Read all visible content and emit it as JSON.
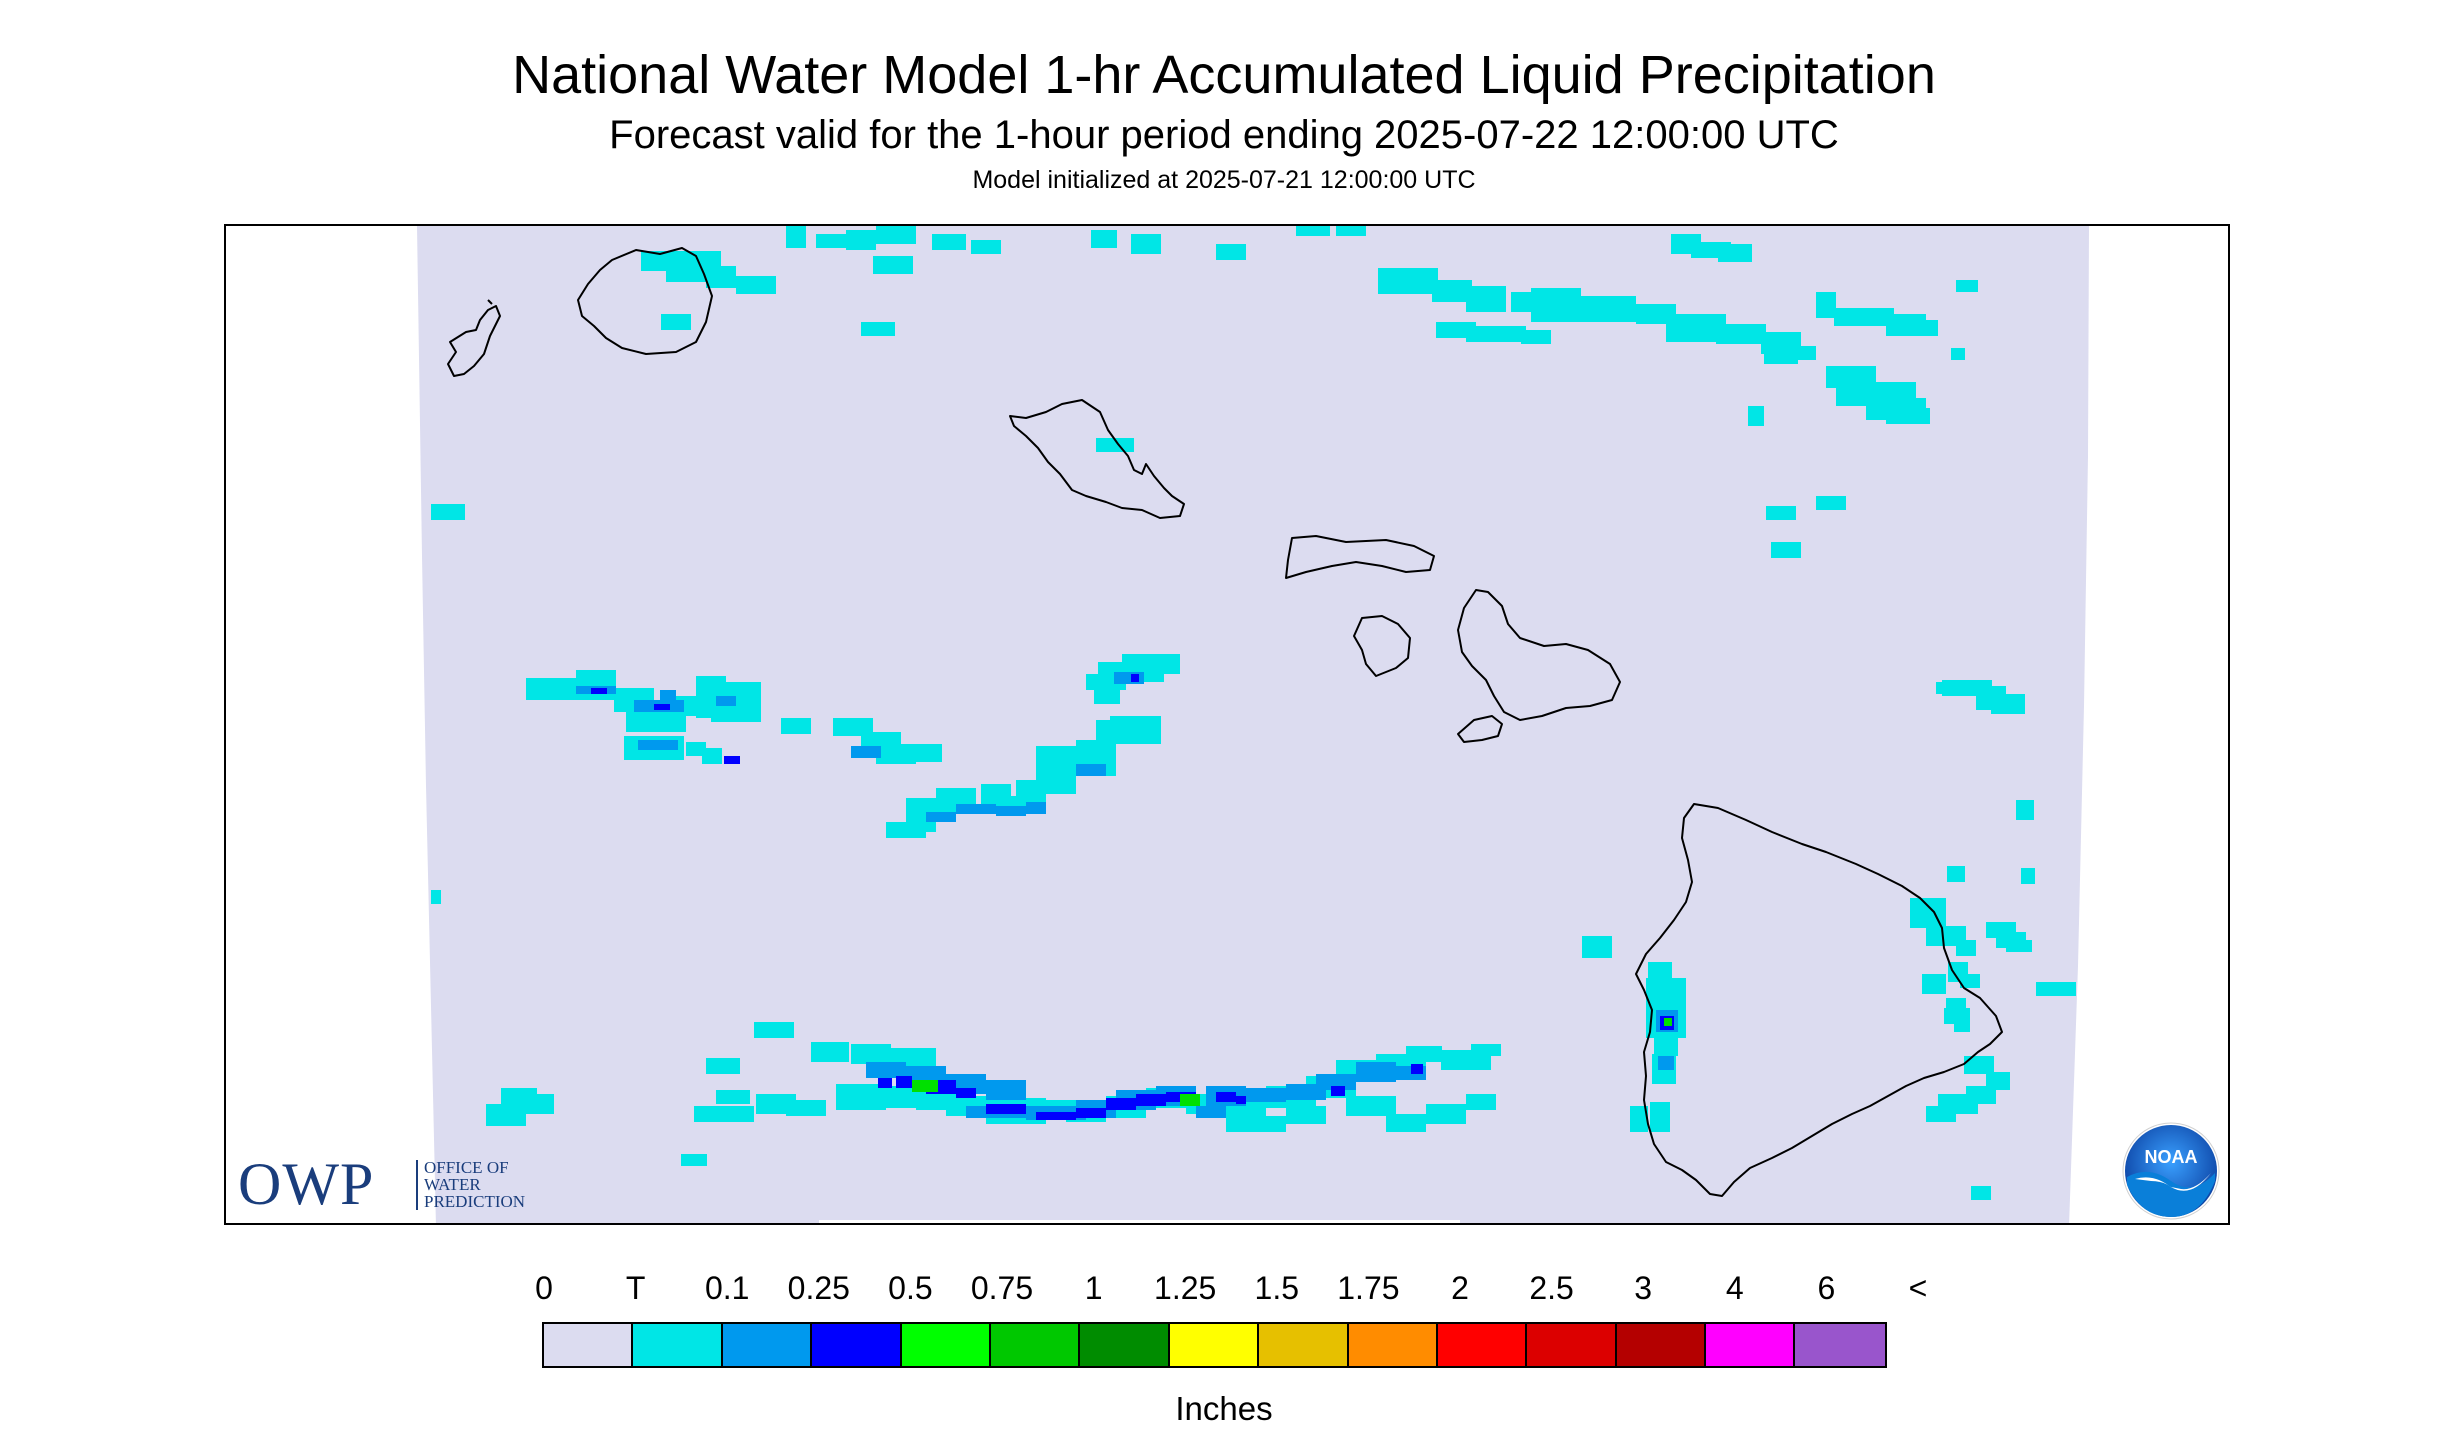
{
  "titles": {
    "main": "National Water Model 1-hr Accumulated Liquid Precipitation",
    "sub": "Forecast valid for the 1-hour period ending 2025-07-22 12:00:00 UTC",
    "init": "Model initialized at 2025-07-21 12:00:00 UTC"
  },
  "map": {
    "region": "Hawaiian Islands",
    "domain_fill_color": "#dcdcf0",
    "islands": [
      "Niihau",
      "Kauai",
      "Oahu",
      "Molokai",
      "Lanai",
      "Maui",
      "Kahoolawe",
      "Hawaii"
    ],
    "rain_cells_legend_classes": [
      "T",
      "0.1",
      "0.25",
      "0.5",
      "0.75"
    ]
  },
  "logos": {
    "owp": {
      "big": "OWP",
      "line1": "OFFICE OF",
      "line2": "WATER",
      "line3": "PREDICTION"
    },
    "noaa": {
      "text": "NOAA"
    }
  },
  "legend": {
    "ticks": [
      "0",
      "T",
      "0.1",
      "0.25",
      "0.5",
      "0.75",
      "1",
      "1.25",
      "1.5",
      "1.75",
      "2",
      "2.5",
      "3",
      "4",
      "6",
      "<"
    ],
    "colors": [
      "#dcdcf0",
      "#00e6e6",
      "#0099ee",
      "#0000ff",
      "#00ff00",
      "#00c800",
      "#008c00",
      "#ffff00",
      "#e6c000",
      "#ff8c00",
      "#ff0000",
      "#dc0000",
      "#b40000",
      "#ff00ff",
      "#9955cc"
    ],
    "units": "Inches"
  }
}
